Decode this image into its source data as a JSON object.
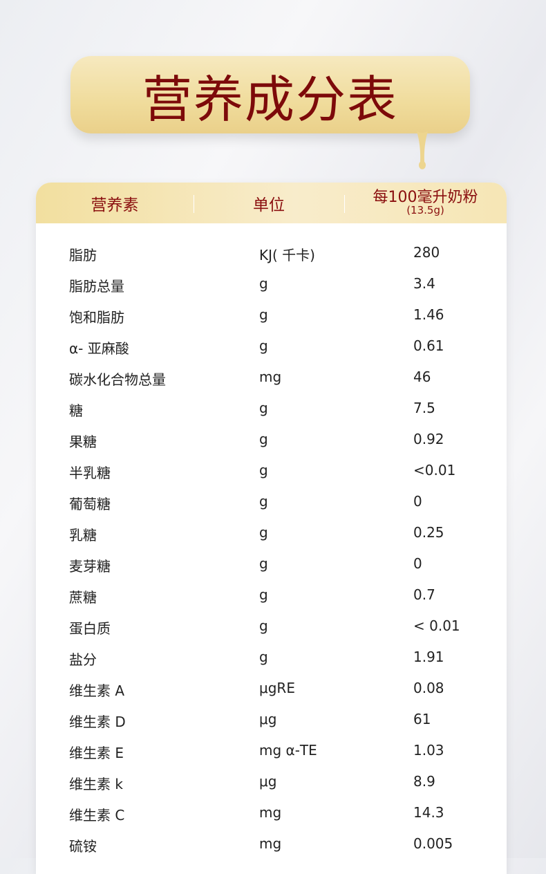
{
  "title": "营养成分表",
  "colors": {
    "accent": "#7d0a0a",
    "gold": "#f0dc9c"
  },
  "table": {
    "headers": [
      "营养素",
      "单位",
      "每100毫升奶粉",
      "(13.5g)"
    ],
    "rows": [
      [
        "脂肪",
        "KJ( 千卡)",
        "280"
      ],
      [
        "脂肪总量",
        "g",
        "3.4"
      ],
      [
        "饱和脂肪",
        "g",
        "1.46"
      ],
      [
        "α- 亚麻酸",
        "g",
        "0.61"
      ],
      [
        "碳水化合物总量",
        "mg",
        "46"
      ],
      [
        "糖",
        "g",
        "7.5"
      ],
      [
        "果糖",
        "g",
        "0.92"
      ],
      [
        "半乳糖",
        "g",
        "<0.01"
      ],
      [
        "葡萄糖",
        "g",
        "0"
      ],
      [
        "乳糖",
        "g",
        "0.25"
      ],
      [
        "麦芽糖",
        "g",
        "0"
      ],
      [
        "蔗糖",
        "g",
        "0.7"
      ],
      [
        "蛋白质",
        "g",
        "< 0.01"
      ],
      [
        "盐分",
        "g",
        "1.91"
      ],
      [
        "维生素 A",
        "μgRE",
        "0.08"
      ],
      [
        "维生素 D",
        "μg",
        "61"
      ],
      [
        "维生素 E",
        "mg α-TE",
        "1.03"
      ],
      [
        "维生素 k",
        "μg",
        "8.9"
      ],
      [
        "维生素 C",
        "mg",
        "14.3"
      ],
      [
        "硫铵",
        "mg",
        "0.005"
      ]
    ]
  }
}
